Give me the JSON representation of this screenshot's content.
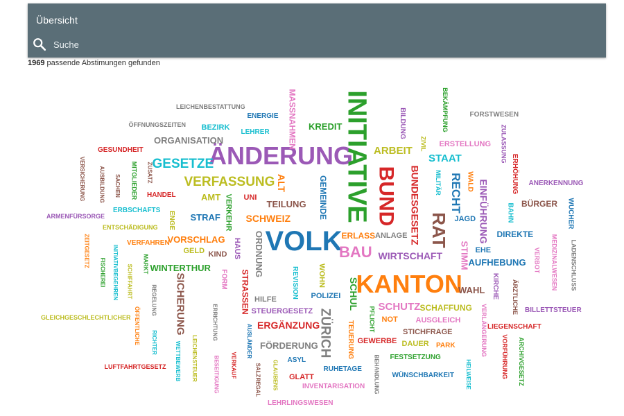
{
  "header": {
    "title": "Übersicht",
    "search_placeholder": "Suche",
    "bg_color": "#5a6e77"
  },
  "results": {
    "count": "1969",
    "label": "passende Abstimungen gefunden"
  },
  "word_cloud": [
    {
      "text": "ÄNDERUNG",
      "color": "#9b59b6"
    },
    {
      "text": "INITIATIVE",
      "color": "#2ca02c"
    },
    {
      "text": "KANTON",
      "color": "#ff7f0e"
    },
    {
      "text": "VOLK",
      "color": "#1f77b4"
    },
    {
      "text": "BUND",
      "color": "#d62728"
    },
    {
      "text": "RAT",
      "color": "#8c564b"
    },
    {
      "text": "ZÜRICH",
      "color": "#7f7f7f"
    },
    {
      "text": "BAU",
      "color": "#e377c2"
    },
    {
      "text": "GESETZE",
      "color": "#17becf"
    },
    {
      "text": "VERFASSUNG",
      "color": "#bcbd22"
    },
    {
      "text": "SICHERUNG",
      "color": "#8c564b"
    },
    {
      "text": "MASSNAHMEN",
      "color": "#e377c2"
    },
    {
      "text": "BUNDESGESETZ",
      "color": "#d62728"
    },
    {
      "text": "RECHT",
      "color": "#1f77b4"
    },
    {
      "text": "WIRTSCHAFT",
      "color": "#9b59b6"
    },
    {
      "text": "SCHUTZ",
      "color": "#e377c2"
    },
    {
      "text": "ERGÄNZUNG",
      "color": "#d62728"
    },
    {
      "text": "FÖRDERUNG",
      "color": "#7f7f7f"
    },
    {
      "text": "SCHAFFUNG",
      "color": "#bcbd22"
    },
    {
      "text": "AUFHEBUNG",
      "color": "#1f77b4"
    },
    {
      "text": "ORGANISATION",
      "color": "#7f7f7f"
    },
    {
      "text": "EINFÜHRUNG",
      "color": "#9b59b6"
    },
    {
      "text": "STRASSEN",
      "color": "#d62728"
    },
    {
      "text": "ORDNUNG",
      "color": "#7f7f7f"
    },
    {
      "text": "STAAT",
      "color": "#17becf"
    },
    {
      "text": "ARBEIT",
      "color": "#bcbd22"
    },
    {
      "text": "SCHWEIZ",
      "color": "#ff7f0e"
    },
    {
      "text": "TEILUNG",
      "color": "#8c564b"
    },
    {
      "text": "WINTERTHUR",
      "color": "#2ca02c"
    },
    {
      "text": "VORSCHLAG",
      "color": "#ff7f0e"
    },
    {
      "text": "KREDIT",
      "color": "#2ca02c"
    },
    {
      "text": "WAHL",
      "color": "#8c564b"
    },
    {
      "text": "STRAF",
      "color": "#1f77b4"
    },
    {
      "text": "SCHUL",
      "color": "#2ca02c"
    },
    {
      "text": "STIMM",
      "color": "#e377c2"
    },
    {
      "text": "BÜRGER",
      "color": "#8c564b"
    },
    {
      "text": "DIREKTE",
      "color": "#1f77b4"
    },
    {
      "text": "ANLAGE",
      "color": "#7f7f7f"
    },
    {
      "text": "ERLASS",
      "color": "#ff7f0e"
    },
    {
      "text": "GEMEINDE",
      "color": "#1f77b4"
    },
    {
      "text": "VERKEHR",
      "color": "#2ca02c"
    },
    {
      "text": "STEUERGESETZ",
      "color": "#9b59b6"
    },
    {
      "text": "STICHFRAGE",
      "color": "#8c564b"
    },
    {
      "text": "GEWERBE",
      "color": "#d62728"
    },
    {
      "text": "POLIZEI",
      "color": "#1f77b4"
    },
    {
      "text": "HILFE",
      "color": "#7f7f7f"
    },
    {
      "text": "AUSGLEICH",
      "color": "#e377c2"
    },
    {
      "text": "FESTSETZUNG",
      "color": "#2ca02c"
    },
    {
      "text": "WÜNSCHBARKEIT",
      "color": "#1f77b4"
    },
    {
      "text": "INVENTARISATION",
      "color": "#e377c2"
    },
    {
      "text": "LEHRLINGSWESEN",
      "color": "#e377c2"
    },
    {
      "text": "GLATT",
      "color": "#d62728"
    },
    {
      "text": "RUHETAGE",
      "color": "#1f77b4"
    },
    {
      "text": "ASYL",
      "color": "#1f77b4"
    },
    {
      "text": "DAUER",
      "color": "#bcbd22"
    },
    {
      "text": "PARK",
      "color": "#ff7f0e"
    },
    {
      "text": "NOT",
      "color": "#ff7f0e"
    },
    {
      "text": "ALT",
      "color": "#ff7f0e"
    },
    {
      "text": "AMT",
      "color": "#bcbd22"
    },
    {
      "text": "UNI",
      "color": "#d62728"
    },
    {
      "text": "GELD",
      "color": "#bcbd22"
    },
    {
      "text": "KIND",
      "color": "#8c564b"
    },
    {
      "text": "HAUS",
      "color": "#9b59b6"
    },
    {
      "text": "FORM",
      "color": "#e377c2"
    },
    {
      "text": "WOHN",
      "color": "#bcbd22"
    },
    {
      "text": "REVISION",
      "color": "#17becf"
    },
    {
      "text": "EHE",
      "color": "#1f77b4"
    },
    {
      "text": "JAGD",
      "color": "#1f77b4"
    },
    {
      "text": "BAHN",
      "color": "#17becf"
    },
    {
      "text": "WALD",
      "color": "#ff7f0e"
    },
    {
      "text": "MILITÄR",
      "color": "#17becf"
    },
    {
      "text": "ZIVIL",
      "color": "#bcbd22"
    },
    {
      "text": "BILDUNG",
      "color": "#9b59b6"
    },
    {
      "text": "BEKÄMPFUNG",
      "color": "#2ca02c"
    },
    {
      "text": "FORSTWESEN",
      "color": "#7f7f7f"
    },
    {
      "text": "ERSTELLUNG",
      "color": "#e377c2"
    },
    {
      "text": "ZULASSUNG",
      "color": "#9b59b6"
    },
    {
      "text": "ERHÖHUNG",
      "color": "#d62728"
    },
    {
      "text": "ANERKENNUNG",
      "color": "#9b59b6"
    },
    {
      "text": "WUCHER",
      "color": "#1f77b4"
    },
    {
      "text": "VERBOT",
      "color": "#e377c2"
    },
    {
      "text": "MEDIZINALWESEN",
      "color": "#e377c2"
    },
    {
      "text": "LADENSCHLUSS",
      "color": "#7f7f7f"
    },
    {
      "text": "KIRCHE",
      "color": "#9b59b6"
    },
    {
      "text": "ÄRZTLICHE",
      "color": "#8c564b"
    },
    {
      "text": "BILLETTSTEUER",
      "color": "#9b59b6"
    },
    {
      "text": "LIEGENSCHAFT",
      "color": "#d62728"
    },
    {
      "text": "VERLÄNGERUNG",
      "color": "#e377c2"
    },
    {
      "text": "VORFÜHRUNG",
      "color": "#d62728"
    },
    {
      "text": "ARCHIVGESETZ",
      "color": "#2ca02c"
    },
    {
      "text": "HEILWEISE",
      "color": "#17becf"
    },
    {
      "text": "BEHANDLUNG",
      "color": "#7f7f7f"
    },
    {
      "text": "TEUERUNG",
      "color": "#ff7f0e"
    },
    {
      "text": "PFLICHT",
      "color": "#2ca02c"
    },
    {
      "text": "LEICHENBESTATTUNG",
      "color": "#7f7f7f"
    },
    {
      "text": "ENERGIE",
      "color": "#1f77b4"
    },
    {
      "text": "ÖFFNUNGSZEITEN",
      "color": "#7f7f7f"
    },
    {
      "text": "BEZIRK",
      "color": "#17becf"
    },
    {
      "text": "LEHRER",
      "color": "#17becf"
    },
    {
      "text": "GESUNDHEIT",
      "color": "#d62728"
    },
    {
      "text": "ZUSATZ",
      "color": "#8c564b"
    },
    {
      "text": "VERSICHERUNG",
      "color": "#8c564b"
    },
    {
      "text": "AUSBILDUNG",
      "color": "#8c564b"
    },
    {
      "text": "SACHEN",
      "color": "#8c564b"
    },
    {
      "text": "MITGLIEDER",
      "color": "#2ca02c"
    },
    {
      "text": "HANDEL",
      "color": "#d62728"
    },
    {
      "text": "ERBSCHAFTS",
      "color": "#17becf"
    },
    {
      "text": "ENGE",
      "color": "#bcbd22"
    },
    {
      "text": "ARMENFÜRSORGE",
      "color": "#9b59b6"
    },
    {
      "text": "ENTSCHÄDIGUNG",
      "color": "#bcbd22"
    },
    {
      "text": "ZEITGESETZ",
      "color": "#ff7f0e"
    },
    {
      "text": "VERFAHREN",
      "color": "#ff7f0e"
    },
    {
      "text": "INITIATIVBEGEHREN",
      "color": "#17becf"
    },
    {
      "text": "MARKT",
      "color": "#2ca02c"
    },
    {
      "text": "FISCHEREI",
      "color": "#2ca02c"
    },
    {
      "text": "SCHIFFAHRT",
      "color": "#bcbd22"
    },
    {
      "text": "REGELUNG",
      "color": "#7f7f7f"
    },
    {
      "text": "GLEICHGESCHLECHTLICHER",
      "color": "#bcbd22"
    },
    {
      "text": "ÖFFENTLICHE",
      "color": "#ff7f0e"
    },
    {
      "text": "RICHTER",
      "color": "#17becf"
    },
    {
      "text": "WETTBEWERB",
      "color": "#17becf"
    },
    {
      "text": "LEICHENSTEUER",
      "color": "#bcbd22"
    },
    {
      "text": "ERRICHTUNG",
      "color": "#7f7f7f"
    },
    {
      "text": "BESEITIGUNG",
      "color": "#e377c2"
    },
    {
      "text": "VERKAUF",
      "color": "#d62728"
    },
    {
      "text": "LUFTFAHRTGESETZ",
      "color": "#d62728"
    },
    {
      "text": "AUSLÄNDER",
      "color": "#1f77b4"
    },
    {
      "text": "SALZREGAL",
      "color": "#8c564b"
    },
    {
      "text": "GLAUBENS",
      "color": "#bcbd22"
    }
  ]
}
